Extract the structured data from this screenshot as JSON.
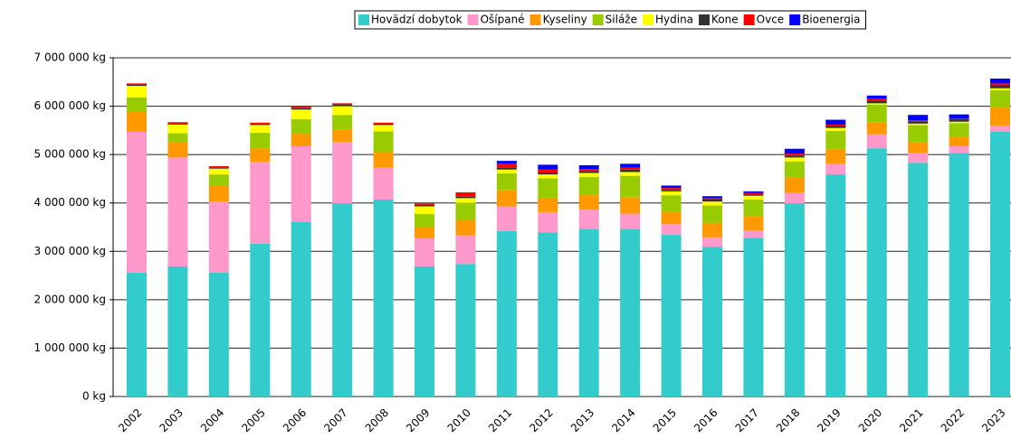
{
  "chart_data": {
    "type": "stacked-bar",
    "categories": [
      "2002",
      "2003",
      "2004",
      "2005",
      "2006",
      "2007",
      "2008",
      "2009",
      "2010",
      "2011",
      "2012",
      "2013",
      "2014",
      "2015",
      "2016",
      "2017",
      "2018",
      "2019",
      "2020",
      "2021",
      "2022",
      "2023"
    ],
    "series": [
      {
        "name": "Hovädzí dobytok",
        "color": "#33cccc",
        "values": [
          2560000,
          2690000,
          2560000,
          3160000,
          3610000,
          3990000,
          4070000,
          2690000,
          2740000,
          3420000,
          3390000,
          3460000,
          3460000,
          3340000,
          3090000,
          3280000,
          3990000,
          4590000,
          5130000,
          4830000,
          5030000,
          5470000
        ]
      },
      {
        "name": "Ošípané",
        "color": "#ff99cc",
        "values": [
          2910000,
          2250000,
          1470000,
          1690000,
          1560000,
          1270000,
          660000,
          580000,
          590000,
          510000,
          420000,
          400000,
          320000,
          220000,
          200000,
          150000,
          220000,
          220000,
          290000,
          210000,
          140000,
          130000
        ]
      },
      {
        "name": "Kyseliny",
        "color": "#ff9900",
        "values": [
          410000,
          320000,
          320000,
          280000,
          260000,
          260000,
          320000,
          230000,
          320000,
          340000,
          300000,
          300000,
          340000,
          260000,
          300000,
          300000,
          320000,
          310000,
          250000,
          220000,
          190000,
          380000
        ]
      },
      {
        "name": "Siláže",
        "color": "#99cc00",
        "values": [
          300000,
          180000,
          240000,
          320000,
          300000,
          300000,
          430000,
          270000,
          350000,
          340000,
          400000,
          380000,
          440000,
          340000,
          360000,
          340000,
          330000,
          370000,
          360000,
          350000,
          290000,
          350000
        ]
      },
      {
        "name": "Hydina",
        "color": "#ffff00",
        "values": [
          240000,
          180000,
          120000,
          160000,
          200000,
          180000,
          130000,
          160000,
          100000,
          80000,
          80000,
          80000,
          80000,
          80000,
          80000,
          80000,
          80000,
          60000,
          30000,
          30000,
          30000,
          40000
        ]
      },
      {
        "name": "Kone",
        "color": "#333333",
        "values": [
          20000,
          20000,
          20000,
          20000,
          30000,
          30000,
          20000,
          30000,
          30000,
          40000,
          40000,
          40000,
          50000,
          30000,
          50000,
          30000,
          40000,
          40000,
          60000,
          50000,
          50000,
          60000
        ]
      },
      {
        "name": "Ovce",
        "color": "#ff0000",
        "values": [
          30000,
          30000,
          30000,
          30000,
          30000,
          30000,
          30000,
          30000,
          90000,
          80000,
          60000,
          40000,
          40000,
          40000,
          20000,
          30000,
          40000,
          30000,
          40000,
          20000,
          20000,
          40000
        ]
      },
      {
        "name": "Bioenergia",
        "color": "#0000ff",
        "values": [
          0,
          0,
          0,
          0,
          0,
          0,
          0,
          0,
          0,
          60000,
          100000,
          80000,
          80000,
          50000,
          40000,
          30000,
          100000,
          100000,
          60000,
          110000,
          80000,
          100000
        ]
      }
    ],
    "ylim": [
      0,
      7000000
    ],
    "yticks": [
      {
        "value": 0,
        "label": "0 kg"
      },
      {
        "value": 1000000,
        "label": "1 000 000 kg"
      },
      {
        "value": 2000000,
        "label": "2 000 000 kg"
      },
      {
        "value": 3000000,
        "label": "3 000 000 kg"
      },
      {
        "value": 4000000,
        "label": "4 000 000 kg"
      },
      {
        "value": 5000000,
        "label": "5 000 000 kg"
      },
      {
        "value": 6000000,
        "label": "6 000 000 kg"
      },
      {
        "value": 7000000,
        "label": "7 000 000 kg"
      }
    ],
    "grid": true,
    "legend": "top-right"
  }
}
